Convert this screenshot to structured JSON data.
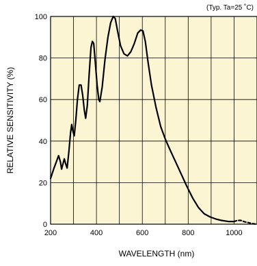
{
  "chart_data": {
    "type": "line",
    "title": "",
    "note": "(Typ. Ta=25 ˚C)",
    "xlabel": "WAVELENGTH (nm)",
    "ylabel": "RELATIVE SENSITIVITY (%)",
    "xlim": [
      200,
      1100
    ],
    "ylim": [
      0,
      100
    ],
    "x_ticks": [
      200,
      400,
      600,
      800,
      1000
    ],
    "y_ticks": [
      0,
      20,
      40,
      60,
      80,
      100
    ],
    "x_gridlines": [
      200,
      300,
      400,
      500,
      600,
      700,
      800,
      900,
      1000,
      1100
    ],
    "y_gridlines": [
      0,
      20,
      40,
      60,
      80,
      100
    ],
    "grid": true,
    "background_color": "#fcf5d4",
    "line_color": "#000000",
    "series": [
      {
        "points": [
          [
            200,
            22
          ],
          [
            215,
            27
          ],
          [
            225,
            30
          ],
          [
            235,
            33
          ],
          [
            243,
            30
          ],
          [
            248,
            26.5
          ],
          [
            254,
            29
          ],
          [
            260,
            31.5
          ],
          [
            266,
            29
          ],
          [
            272,
            27
          ],
          [
            280,
            35
          ],
          [
            287,
            44
          ],
          [
            292,
            48
          ],
          [
            297,
            45
          ],
          [
            303,
            42.5
          ],
          [
            310,
            50
          ],
          [
            317,
            60
          ],
          [
            325,
            67
          ],
          [
            333,
            67
          ],
          [
            340,
            62
          ],
          [
            347,
            55
          ],
          [
            353,
            51
          ],
          [
            360,
            57
          ],
          [
            368,
            72
          ],
          [
            376,
            85
          ],
          [
            382,
            88
          ],
          [
            388,
            87
          ],
          [
            395,
            78
          ],
          [
            403,
            67
          ],
          [
            410,
            60
          ],
          [
            415,
            59
          ],
          [
            425,
            66
          ],
          [
            437,
            79
          ],
          [
            450,
            90
          ],
          [
            462,
            97
          ],
          [
            473,
            100
          ],
          [
            482,
            99
          ],
          [
            492,
            93
          ],
          [
            505,
            86
          ],
          [
            520,
            82
          ],
          [
            535,
            81
          ],
          [
            550,
            83
          ],
          [
            565,
            87
          ],
          [
            580,
            92
          ],
          [
            593,
            93.5
          ],
          [
            603,
            93
          ],
          [
            613,
            88
          ],
          [
            625,
            78
          ],
          [
            640,
            67
          ],
          [
            660,
            56
          ],
          [
            680,
            47
          ],
          [
            700,
            41
          ],
          [
            720,
            36
          ],
          [
            745,
            30
          ],
          [
            770,
            24
          ],
          [
            795,
            18
          ],
          [
            820,
            12.5
          ],
          [
            845,
            8
          ],
          [
            870,
            5
          ],
          [
            895,
            3.5
          ],
          [
            920,
            2.5
          ],
          [
            945,
            1.8
          ],
          [
            975,
            1.3
          ],
          [
            1000,
            1.3
          ]
        ]
      },
      {
        "style": "dashed",
        "points": [
          [
            1000,
            1.3
          ],
          [
            1015,
            1.8
          ],
          [
            1030,
            1.8
          ],
          [
            1045,
            1.2
          ],
          [
            1060,
            0.8
          ],
          [
            1075,
            0.4
          ],
          [
            1090,
            0.1
          ],
          [
            1100,
            0
          ]
        ]
      }
    ]
  }
}
